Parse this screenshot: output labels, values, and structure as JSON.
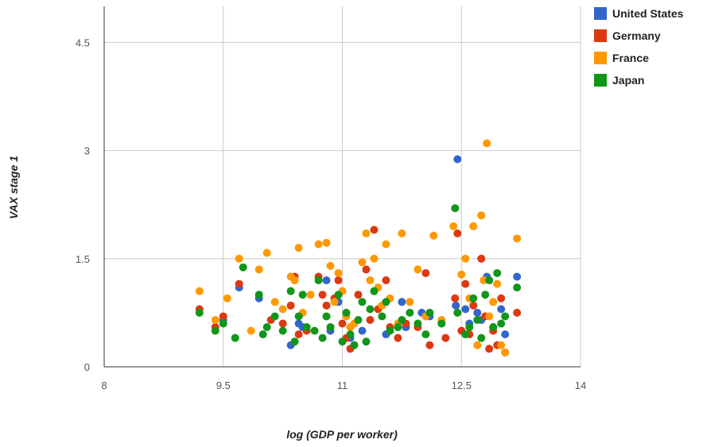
{
  "chart_data": {
    "type": "scatter",
    "title": "",
    "xlabel": "log (GDP per worker)",
    "ylabel": "VAX stage 1",
    "xlim": [
      8,
      14
    ],
    "ylim": [
      0,
      5
    ],
    "xticks": [
      "8",
      "9.5",
      "11",
      "12.5",
      "14"
    ],
    "yticks": [
      "0",
      "1.5",
      "3",
      "4.5"
    ],
    "grid": true,
    "legend_position": "top-right",
    "series": [
      {
        "name": "United States",
        "color": "#3366cc",
        "points": [
          [
            9.5,
            0.65
          ],
          [
            9.7,
            1.1
          ],
          [
            9.95,
            0.95
          ],
          [
            10.35,
            0.3
          ],
          [
            10.45,
            0.6
          ],
          [
            10.5,
            0.55
          ],
          [
            10.8,
            1.2
          ],
          [
            10.85,
            0.5
          ],
          [
            10.95,
            0.9
          ],
          [
            11.1,
            0.4
          ],
          [
            11.25,
            0.5
          ],
          [
            11.5,
            0.85
          ],
          [
            11.55,
            0.45
          ],
          [
            11.75,
            0.9
          ],
          [
            11.8,
            0.55
          ],
          [
            12.0,
            0.75
          ],
          [
            12.1,
            0.7
          ],
          [
            12.25,
            0.6
          ],
          [
            12.43,
            0.85
          ],
          [
            12.45,
            2.88
          ],
          [
            12.55,
            0.8
          ],
          [
            12.6,
            0.6
          ],
          [
            12.7,
            0.75
          ],
          [
            12.75,
            0.65
          ],
          [
            12.82,
            1.25
          ],
          [
            12.9,
            0.55
          ],
          [
            13.0,
            0.8
          ],
          [
            13.2,
            1.25
          ],
          [
            13.05,
            0.45
          ]
        ]
      },
      {
        "name": "Germany",
        "color": "#dc3912",
        "points": [
          [
            9.2,
            0.8
          ],
          [
            9.4,
            0.55
          ],
          [
            9.5,
            0.7
          ],
          [
            9.7,
            1.15
          ],
          [
            10.1,
            0.65
          ],
          [
            10.25,
            0.6
          ],
          [
            10.35,
            0.85
          ],
          [
            10.4,
            1.25
          ],
          [
            10.45,
            0.45
          ],
          [
            10.55,
            0.5
          ],
          [
            10.7,
            1.25
          ],
          [
            10.75,
            1.0
          ],
          [
            10.8,
            0.85
          ],
          [
            10.9,
            0.95
          ],
          [
            10.95,
            1.2
          ],
          [
            11.0,
            0.6
          ],
          [
            11.05,
            0.4
          ],
          [
            11.1,
            0.25
          ],
          [
            11.2,
            1.0
          ],
          [
            11.3,
            1.35
          ],
          [
            11.35,
            0.65
          ],
          [
            11.4,
            1.9
          ],
          [
            11.45,
            0.8
          ],
          [
            11.55,
            1.2
          ],
          [
            11.6,
            0.55
          ],
          [
            11.7,
            0.4
          ],
          [
            11.8,
            0.6
          ],
          [
            11.95,
            0.55
          ],
          [
            12.05,
            1.3
          ],
          [
            12.1,
            0.3
          ],
          [
            12.3,
            0.4
          ],
          [
            12.42,
            0.95
          ],
          [
            12.45,
            1.85
          ],
          [
            12.5,
            0.5
          ],
          [
            12.55,
            1.15
          ],
          [
            12.6,
            0.45
          ],
          [
            12.65,
            0.85
          ],
          [
            12.75,
            1.5
          ],
          [
            12.8,
            0.7
          ],
          [
            12.85,
            0.25
          ],
          [
            12.9,
            0.5
          ],
          [
            12.95,
            0.3
          ],
          [
            13.0,
            0.95
          ],
          [
            13.05,
            0.2
          ],
          [
            13.2,
            0.75
          ]
        ]
      },
      {
        "name": "France",
        "color": "#ff9900",
        "points": [
          [
            9.2,
            1.05
          ],
          [
            9.4,
            0.65
          ],
          [
            9.55,
            0.95
          ],
          [
            9.7,
            1.5
          ],
          [
            9.85,
            0.5
          ],
          [
            9.95,
            1.35
          ],
          [
            10.05,
            1.58
          ],
          [
            10.15,
            0.9
          ],
          [
            10.25,
            0.8
          ],
          [
            10.35,
            1.25
          ],
          [
            10.4,
            1.2
          ],
          [
            10.45,
            1.65
          ],
          [
            10.5,
            0.75
          ],
          [
            10.6,
            1.0
          ],
          [
            10.7,
            1.7
          ],
          [
            10.8,
            1.72
          ],
          [
            10.85,
            1.4
          ],
          [
            10.9,
            0.9
          ],
          [
            10.95,
            1.3
          ],
          [
            11.0,
            1.05
          ],
          [
            11.05,
            0.7
          ],
          [
            11.1,
            0.55
          ],
          [
            11.15,
            0.6
          ],
          [
            11.25,
            1.45
          ],
          [
            11.3,
            1.85
          ],
          [
            11.35,
            1.2
          ],
          [
            11.4,
            1.5
          ],
          [
            11.45,
            1.1
          ],
          [
            11.5,
            0.85
          ],
          [
            11.55,
            1.7
          ],
          [
            11.6,
            0.95
          ],
          [
            11.7,
            0.6
          ],
          [
            11.75,
            1.85
          ],
          [
            11.85,
            0.9
          ],
          [
            11.95,
            1.35
          ],
          [
            12.05,
            0.7
          ],
          [
            12.15,
            1.82
          ],
          [
            12.25,
            0.65
          ],
          [
            12.4,
            1.95
          ],
          [
            12.5,
            1.28
          ],
          [
            12.55,
            1.5
          ],
          [
            12.6,
            0.95
          ],
          [
            12.65,
            1.95
          ],
          [
            12.7,
            0.3
          ],
          [
            12.75,
            2.1
          ],
          [
            12.78,
            1.2
          ],
          [
            12.82,
            3.1
          ],
          [
            12.85,
            0.7
          ],
          [
            12.9,
            0.9
          ],
          [
            12.95,
            1.15
          ],
          [
            13.0,
            0.3
          ],
          [
            13.05,
            0.2
          ],
          [
            13.2,
            1.78
          ]
        ]
      },
      {
        "name": "Japan",
        "color": "#109618",
        "points": [
          [
            9.2,
            0.75
          ],
          [
            9.4,
            0.5
          ],
          [
            9.5,
            0.6
          ],
          [
            9.65,
            0.4
          ],
          [
            9.75,
            1.38
          ],
          [
            9.95,
            1.0
          ],
          [
            10.0,
            0.45
          ],
          [
            10.05,
            0.55
          ],
          [
            10.15,
            0.7
          ],
          [
            10.25,
            0.5
          ],
          [
            10.35,
            1.05
          ],
          [
            10.4,
            0.35
          ],
          [
            10.45,
            0.7
          ],
          [
            10.5,
            1.0
          ],
          [
            10.55,
            0.55
          ],
          [
            10.65,
            0.5
          ],
          [
            10.7,
            1.2
          ],
          [
            10.75,
            0.4
          ],
          [
            10.8,
            0.7
          ],
          [
            10.85,
            0.55
          ],
          [
            10.95,
            1.0
          ],
          [
            11.0,
            0.35
          ],
          [
            11.05,
            0.75
          ],
          [
            11.1,
            0.45
          ],
          [
            11.15,
            0.3
          ],
          [
            11.2,
            0.65
          ],
          [
            11.25,
            0.9
          ],
          [
            11.3,
            0.35
          ],
          [
            11.35,
            0.8
          ],
          [
            11.4,
            1.05
          ],
          [
            11.5,
            0.7
          ],
          [
            11.55,
            0.9
          ],
          [
            11.6,
            0.5
          ],
          [
            11.7,
            0.55
          ],
          [
            11.75,
            0.65
          ],
          [
            11.85,
            0.75
          ],
          [
            11.95,
            0.6
          ],
          [
            12.05,
            0.45
          ],
          [
            12.1,
            0.75
          ],
          [
            12.25,
            0.6
          ],
          [
            12.42,
            2.2
          ],
          [
            12.45,
            0.75
          ],
          [
            12.55,
            0.45
          ],
          [
            12.6,
            0.55
          ],
          [
            12.65,
            0.95
          ],
          [
            12.7,
            0.65
          ],
          [
            12.75,
            0.4
          ],
          [
            12.8,
            1.0
          ],
          [
            12.85,
            1.2
          ],
          [
            12.9,
            0.55
          ],
          [
            12.95,
            1.3
          ],
          [
            13.0,
            0.6
          ],
          [
            13.05,
            0.7
          ],
          [
            13.2,
            1.1
          ]
        ]
      }
    ]
  }
}
